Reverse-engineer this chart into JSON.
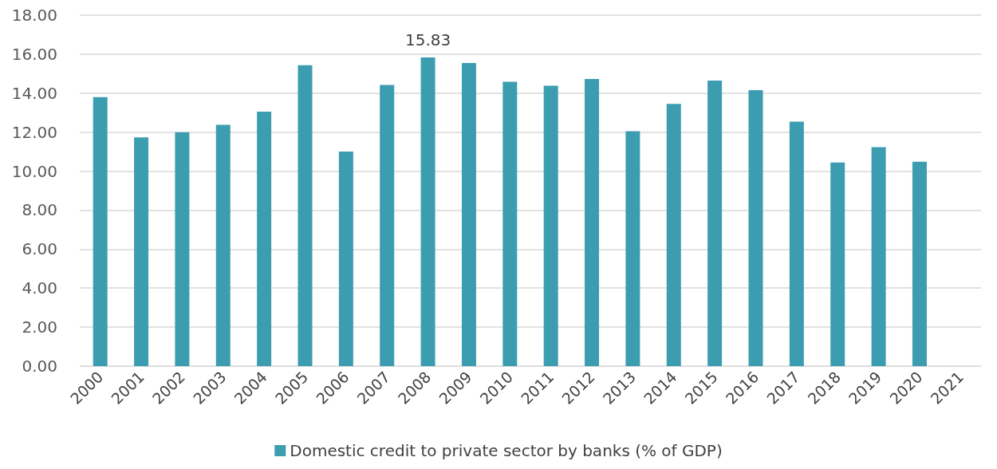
{
  "chart_data": {
    "type": "bar",
    "categories": [
      "2000",
      "2001",
      "2002",
      "2003",
      "2004",
      "2005",
      "2006",
      "2007",
      "2008",
      "2009",
      "2010",
      "2011",
      "2012",
      "2013",
      "2014",
      "2015",
      "2016",
      "2017",
      "2018",
      "2019",
      "2020",
      "2021"
    ],
    "series": [
      {
        "name": "Domestic credit to private sector by banks (% of GDP)",
        "color": "#3c9db1",
        "values": [
          13.8,
          11.73,
          12.0,
          12.38,
          13.05,
          15.43,
          11.0,
          14.42,
          15.83,
          15.55,
          14.58,
          14.38,
          14.73,
          12.05,
          13.45,
          14.65,
          14.15,
          12.54,
          10.44,
          11.23,
          10.48,
          null
        ],
        "value_labels": [
          null,
          null,
          null,
          null,
          null,
          null,
          null,
          null,
          "15.83",
          null,
          null,
          null,
          null,
          null,
          null,
          null,
          null,
          null,
          null,
          null,
          null,
          null
        ]
      }
    ],
    "ylim": [
      0,
      18
    ],
    "yticks": [
      {
        "value": 0,
        "label": "0.00"
      },
      {
        "value": 2,
        "label": "2.00"
      },
      {
        "value": 4,
        "label": "4.00"
      },
      {
        "value": 6,
        "label": "6.00"
      },
      {
        "value": 8,
        "label": "8.00"
      },
      {
        "value": 10,
        "label": "10.00"
      },
      {
        "value": 12,
        "label": "12.00"
      },
      {
        "value": 14,
        "label": "14.00"
      },
      {
        "value": 16,
        "label": "16.00"
      },
      {
        "value": 18,
        "label": "18.00"
      }
    ],
    "grid": "y",
    "legend": "bottom"
  }
}
